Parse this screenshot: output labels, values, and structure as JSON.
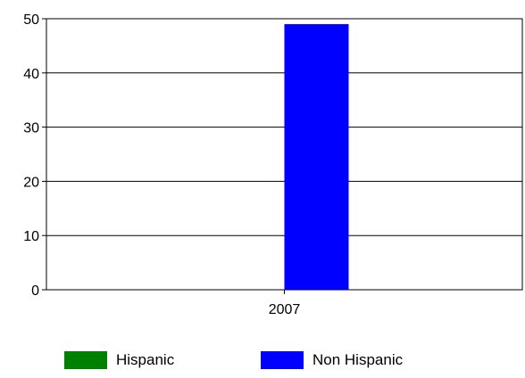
{
  "chart_data": {
    "type": "bar",
    "categories": [
      "2007"
    ],
    "series": [
      {
        "name": "Hispanic",
        "color": "#008000",
        "values": [
          0
        ]
      },
      {
        "name": "Non Hispanic",
        "color": "#0000FF",
        "values": [
          49
        ]
      }
    ],
    "title": "",
    "xlabel": "",
    "ylabel": "",
    "ylim": [
      0,
      50
    ],
    "yticks": [
      "0",
      "10",
      "20",
      "30",
      "40",
      "50"
    ],
    "grid": true,
    "legend_position": "bottom"
  }
}
